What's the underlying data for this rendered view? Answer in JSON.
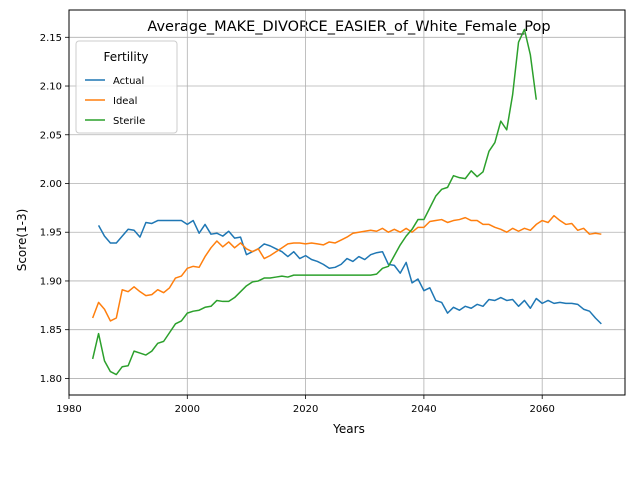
{
  "chart_data": {
    "type": "line",
    "title": "Average_MAKE_DIVORCE_EASIER_of_White_Female_Pop",
    "xlabel": "Years",
    "ylabel": "Score(1-3)",
    "xlim": [
      1980,
      2074
    ],
    "ylim": [
      1.783,
      2.178
    ],
    "xticks": [
      1980,
      2000,
      2020,
      2040,
      2060
    ],
    "xtick_labels": [
      "1980",
      "2000",
      "2020",
      "2040",
      "2060"
    ],
    "yticks": [
      1.8,
      1.85,
      1.9,
      1.95,
      2.0,
      2.05,
      2.1,
      2.15
    ],
    "ytick_labels": [
      "1.80",
      "1.85",
      "1.90",
      "1.95",
      "2.00",
      "2.05",
      "2.10",
      "2.15"
    ],
    "grid": true,
    "legend": {
      "title": "Fertility",
      "placement": "upper-left"
    },
    "series": [
      {
        "name": "Actual",
        "color": "#1f77b4",
        "x": [
          1985,
          1986,
          1987,
          1988,
          1989,
          1990,
          1991,
          1992,
          1993,
          1994,
          1995,
          1996,
          1997,
          1998,
          1999,
          2000,
          2001,
          2002,
          2003,
          2004,
          2005,
          2006,
          2007,
          2008,
          2009,
          2010,
          2011,
          2012,
          2013,
          2014,
          2015,
          2016,
          2017,
          2018,
          2019,
          2020,
          2021,
          2022,
          2023,
          2024,
          2025,
          2026,
          2027,
          2028,
          2029,
          2030,
          2031,
          2032,
          2033,
          2034,
          2035,
          2036,
          2037,
          2038,
          2039,
          2040,
          2041,
          2042,
          2043,
          2044,
          2045,
          2046,
          2047,
          2048,
          2049,
          2050,
          2051,
          2052,
          2053,
          2054,
          2055,
          2056,
          2057,
          2058,
          2059,
          2060,
          2061,
          2062,
          2063,
          2064,
          2065,
          2066,
          2067,
          2068,
          2069,
          2070
        ],
        "values": [
          1.957,
          1.946,
          1.939,
          1.939,
          1.946,
          1.953,
          1.952,
          1.945,
          1.96,
          1.959,
          1.962,
          1.962,
          1.962,
          1.962,
          1.962,
          1.958,
          1.962,
          1.949,
          1.958,
          1.948,
          1.949,
          1.946,
          1.951,
          1.944,
          1.945,
          1.927,
          1.93,
          1.933,
          1.938,
          1.936,
          1.933,
          1.93,
          1.925,
          1.93,
          1.923,
          1.926,
          1.922,
          1.92,
          1.917,
          1.913,
          1.914,
          1.917,
          1.923,
          1.92,
          1.925,
          1.922,
          1.927,
          1.929,
          1.93,
          1.917,
          1.916,
          1.908,
          1.919,
          1.898,
          1.902,
          1.89,
          1.893,
          1.88,
          1.878,
          1.867,
          1.873,
          1.87,
          1.874,
          1.872,
          1.876,
          1.874,
          1.881,
          1.88,
          1.883,
          1.88,
          1.881,
          1.874,
          1.88,
          1.872,
          1.882,
          1.877,
          1.88,
          1.877,
          1.878,
          1.877,
          1.877,
          1.876,
          1.871,
          1.869,
          1.862,
          1.856
        ]
      },
      {
        "name": "Ideal",
        "color": "#ff7f0e",
        "x": [
          1984,
          1985,
          1986,
          1987,
          1988,
          1989,
          1990,
          1991,
          1992,
          1993,
          1994,
          1995,
          1996,
          1997,
          1998,
          1999,
          2000,
          2001,
          2002,
          2003,
          2004,
          2005,
          2006,
          2007,
          2008,
          2009,
          2010,
          2011,
          2012,
          2013,
          2014,
          2015,
          2016,
          2017,
          2018,
          2019,
          2020,
          2021,
          2022,
          2023,
          2024,
          2025,
          2026,
          2027,
          2028,
          2029,
          2030,
          2031,
          2032,
          2033,
          2034,
          2035,
          2036,
          2037,
          2038,
          2039,
          2040,
          2041,
          2042,
          2043,
          2044,
          2045,
          2046,
          2047,
          2048,
          2049,
          2050,
          2051,
          2052,
          2053,
          2054,
          2055,
          2056,
          2057,
          2058,
          2059,
          2060,
          2061,
          2062,
          2063,
          2064,
          2065,
          2066,
          2067,
          2068,
          2069,
          2070
        ],
        "values": [
          1.862,
          1.878,
          1.871,
          1.859,
          1.862,
          1.891,
          1.889,
          1.894,
          1.889,
          1.885,
          1.886,
          1.891,
          1.888,
          1.893,
          1.903,
          1.905,
          1.913,
          1.915,
          1.914,
          1.925,
          1.934,
          1.941,
          1.935,
          1.94,
          1.934,
          1.939,
          1.933,
          1.93,
          1.933,
          1.923,
          1.926,
          1.93,
          1.934,
          1.938,
          1.939,
          1.939,
          1.938,
          1.939,
          1.938,
          1.937,
          1.94,
          1.939,
          1.942,
          1.945,
          1.949,
          1.95,
          1.951,
          1.952,
          1.951,
          1.954,
          1.95,
          1.953,
          1.95,
          1.954,
          1.95,
          1.955,
          1.955,
          1.961,
          1.962,
          1.963,
          1.96,
          1.962,
          1.963,
          1.965,
          1.962,
          1.962,
          1.958,
          1.958,
          1.955,
          1.953,
          1.95,
          1.954,
          1.951,
          1.954,
          1.952,
          1.958,
          1.962,
          1.96,
          1.967,
          1.962,
          1.958,
          1.959,
          1.952,
          1.954,
          1.948,
          1.949,
          1.948
        ]
      },
      {
        "name": "Sterile",
        "color": "#2ca02c",
        "x": [
          1984,
          1985,
          1986,
          1987,
          1988,
          1989,
          1990,
          1991,
          1992,
          1993,
          1994,
          1995,
          1996,
          1997,
          1998,
          1999,
          2000,
          2001,
          2002,
          2003,
          2004,
          2005,
          2006,
          2007,
          2008,
          2009,
          2010,
          2011,
          2012,
          2013,
          2014,
          2015,
          2016,
          2017,
          2018,
          2019,
          2020,
          2021,
          2022,
          2023,
          2024,
          2025,
          2026,
          2027,
          2028,
          2029,
          2030,
          2031,
          2032,
          2033,
          2034,
          2035,
          2036,
          2037,
          2038,
          2039,
          2040,
          2041,
          2042,
          2043,
          2044,
          2045,
          2046,
          2047,
          2048,
          2049,
          2050,
          2051,
          2052,
          2053,
          2054,
          2055,
          2056,
          2057,
          2058,
          2059
        ],
        "values": [
          1.82,
          1.846,
          1.818,
          1.807,
          1.804,
          1.812,
          1.813,
          1.828,
          1.826,
          1.824,
          1.828,
          1.836,
          1.838,
          1.847,
          1.856,
          1.859,
          1.867,
          1.869,
          1.87,
          1.873,
          1.874,
          1.88,
          1.879,
          1.879,
          1.883,
          1.889,
          1.895,
          1.899,
          1.9,
          1.903,
          1.903,
          1.904,
          1.905,
          1.904,
          1.906,
          1.906,
          1.906,
          1.906,
          1.906,
          1.906,
          1.906,
          1.906,
          1.906,
          1.906,
          1.906,
          1.906,
          1.906,
          1.906,
          1.907,
          1.913,
          1.915,
          1.926,
          1.937,
          1.946,
          1.953,
          1.963,
          1.963,
          1.975,
          1.987,
          1.994,
          1.996,
          2.008,
          2.006,
          2.005,
          2.013,
          2.007,
          2.012,
          2.033,
          2.042,
          2.064,
          2.055,
          2.091,
          2.145,
          2.158,
          2.132,
          2.086
        ]
      }
    ]
  }
}
